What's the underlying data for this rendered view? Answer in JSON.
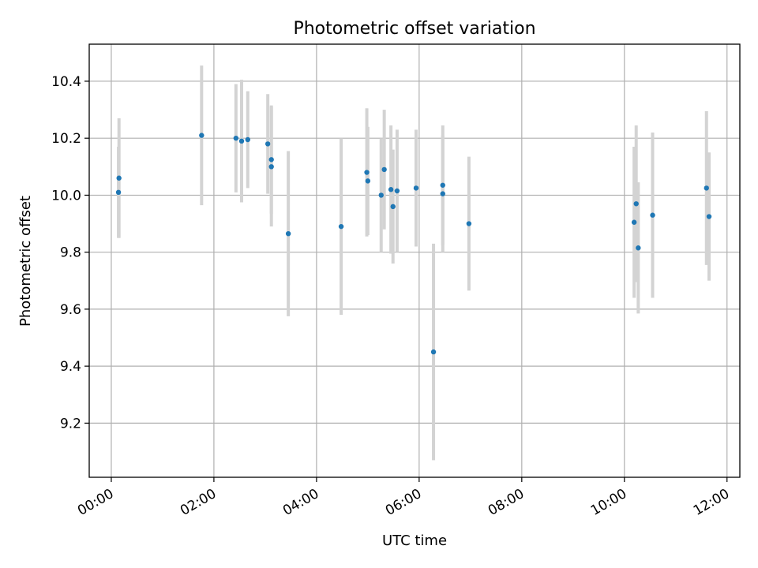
{
  "chart_data": {
    "type": "scatter",
    "title": "Photometric offset variation",
    "xlabel": "UTC time",
    "ylabel": "Photometric offset",
    "grid": true,
    "xlim": [
      -0.43,
      12.25
    ],
    "ylim": [
      9.01,
      10.53
    ],
    "x_unit": "hours (UTC)",
    "xticks": [
      {
        "value": 0,
        "label": "00:00"
      },
      {
        "value": 2,
        "label": "02:00"
      },
      {
        "value": 4,
        "label": "04:00"
      },
      {
        "value": 6,
        "label": "06:00"
      },
      {
        "value": 8,
        "label": "08:00"
      },
      {
        "value": 10,
        "label": "10:00"
      },
      {
        "value": 12,
        "label": "12:00"
      }
    ],
    "yticks": [
      {
        "value": 9.2,
        "label": "9.2"
      },
      {
        "value": 9.4,
        "label": "9.4"
      },
      {
        "value": 9.6,
        "label": "9.6"
      },
      {
        "value": 9.8,
        "label": "9.8"
      },
      {
        "value": 10.0,
        "label": "10.0"
      },
      {
        "value": 10.2,
        "label": "10.2"
      },
      {
        "value": 10.4,
        "label": "10.4"
      }
    ],
    "point_color": "#1f77b4",
    "errorbar_color": "#d3d3d3",
    "series": [
      {
        "name": "offset",
        "points": [
          {
            "x": 0.15,
            "y": 10.06,
            "err": 0.21
          },
          {
            "x": 0.14,
            "y": 10.01,
            "err": 0.16
          },
          {
            "x": 1.76,
            "y": 10.21,
            "err": 0.245
          },
          {
            "x": 2.43,
            "y": 10.2,
            "err": 0.19
          },
          {
            "x": 2.54,
            "y": 10.19,
            "err": 0.215
          },
          {
            "x": 2.66,
            "y": 10.195,
            "err": 0.17
          },
          {
            "x": 3.05,
            "y": 10.18,
            "err": 0.175
          },
          {
            "x": 3.12,
            "y": 10.125,
            "err": 0.19
          },
          {
            "x": 3.12,
            "y": 10.1,
            "err": 0.21
          },
          {
            "x": 3.45,
            "y": 9.865,
            "err": 0.29
          },
          {
            "x": 4.48,
            "y": 9.89,
            "err": 0.31
          },
          {
            "x": 4.98,
            "y": 10.08,
            "err": 0.225
          },
          {
            "x": 5.0,
            "y": 10.05,
            "err": 0.19
          },
          {
            "x": 5.26,
            "y": 10.0,
            "err": 0.2
          },
          {
            "x": 5.32,
            "y": 10.09,
            "err": 0.21
          },
          {
            "x": 5.45,
            "y": 10.02,
            "err": 0.225
          },
          {
            "x": 5.49,
            "y": 9.96,
            "err": 0.2
          },
          {
            "x": 5.57,
            "y": 10.015,
            "err": 0.215
          },
          {
            "x": 5.94,
            "y": 10.025,
            "err": 0.205
          },
          {
            "x": 6.28,
            "y": 9.45,
            "err": 0.38
          },
          {
            "x": 6.46,
            "y": 10.035,
            "err": 0.21
          },
          {
            "x": 6.46,
            "y": 10.005,
            "err": 0.205
          },
          {
            "x": 6.97,
            "y": 9.9,
            "err": 0.235
          },
          {
            "x": 10.19,
            "y": 9.905,
            "err": 0.265
          },
          {
            "x": 10.23,
            "y": 9.97,
            "err": 0.275
          },
          {
            "x": 10.27,
            "y": 9.815,
            "err": 0.23
          },
          {
            "x": 10.55,
            "y": 9.93,
            "err": 0.29
          },
          {
            "x": 11.6,
            "y": 10.025,
            "err": 0.27
          },
          {
            "x": 11.65,
            "y": 9.925,
            "err": 0.225
          }
        ]
      }
    ]
  }
}
